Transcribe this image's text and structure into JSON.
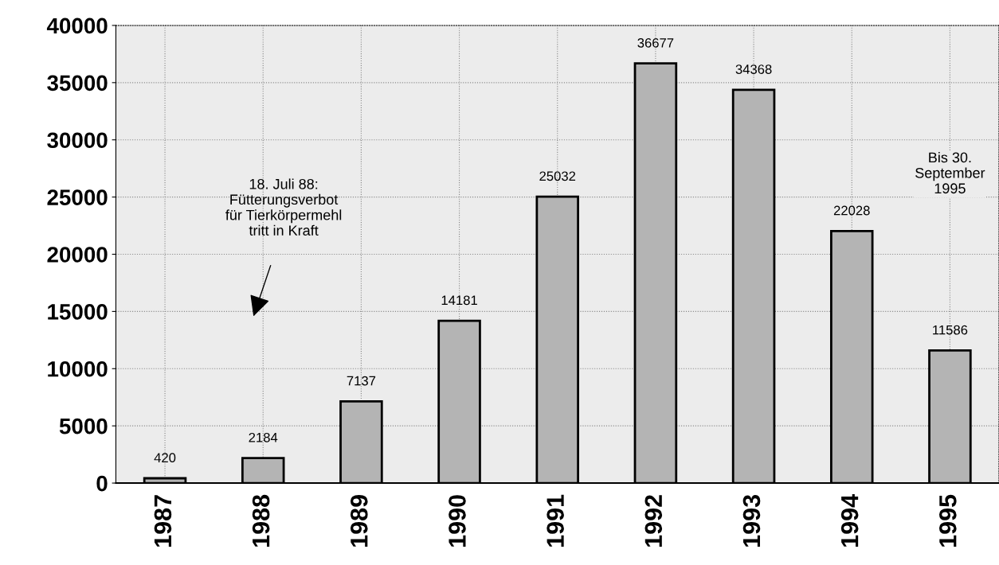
{
  "chart_data": {
    "type": "bar",
    "categories": [
      "1987",
      "1988",
      "1989",
      "1990",
      "1991",
      "1992",
      "1993",
      "1994",
      "1995"
    ],
    "values": [
      420,
      2184,
      7137,
      14181,
      25032,
      36677,
      34368,
      22028,
      11586
    ],
    "color": "#b4b4b4",
    "ylim": [
      0,
      40000
    ],
    "yticks": [
      0,
      5000,
      10000,
      15000,
      20000,
      25000,
      30000,
      35000,
      40000
    ],
    "grid": true,
    "line_style": "dotted",
    "data_labels": true,
    "annotations": [
      "18. Juli 88:\nFütterungsverbot\nfür Tierkörpermehl\ntritt in Kraft",
      "Bis 30.\nSeptember\n1995"
    ]
  }
}
